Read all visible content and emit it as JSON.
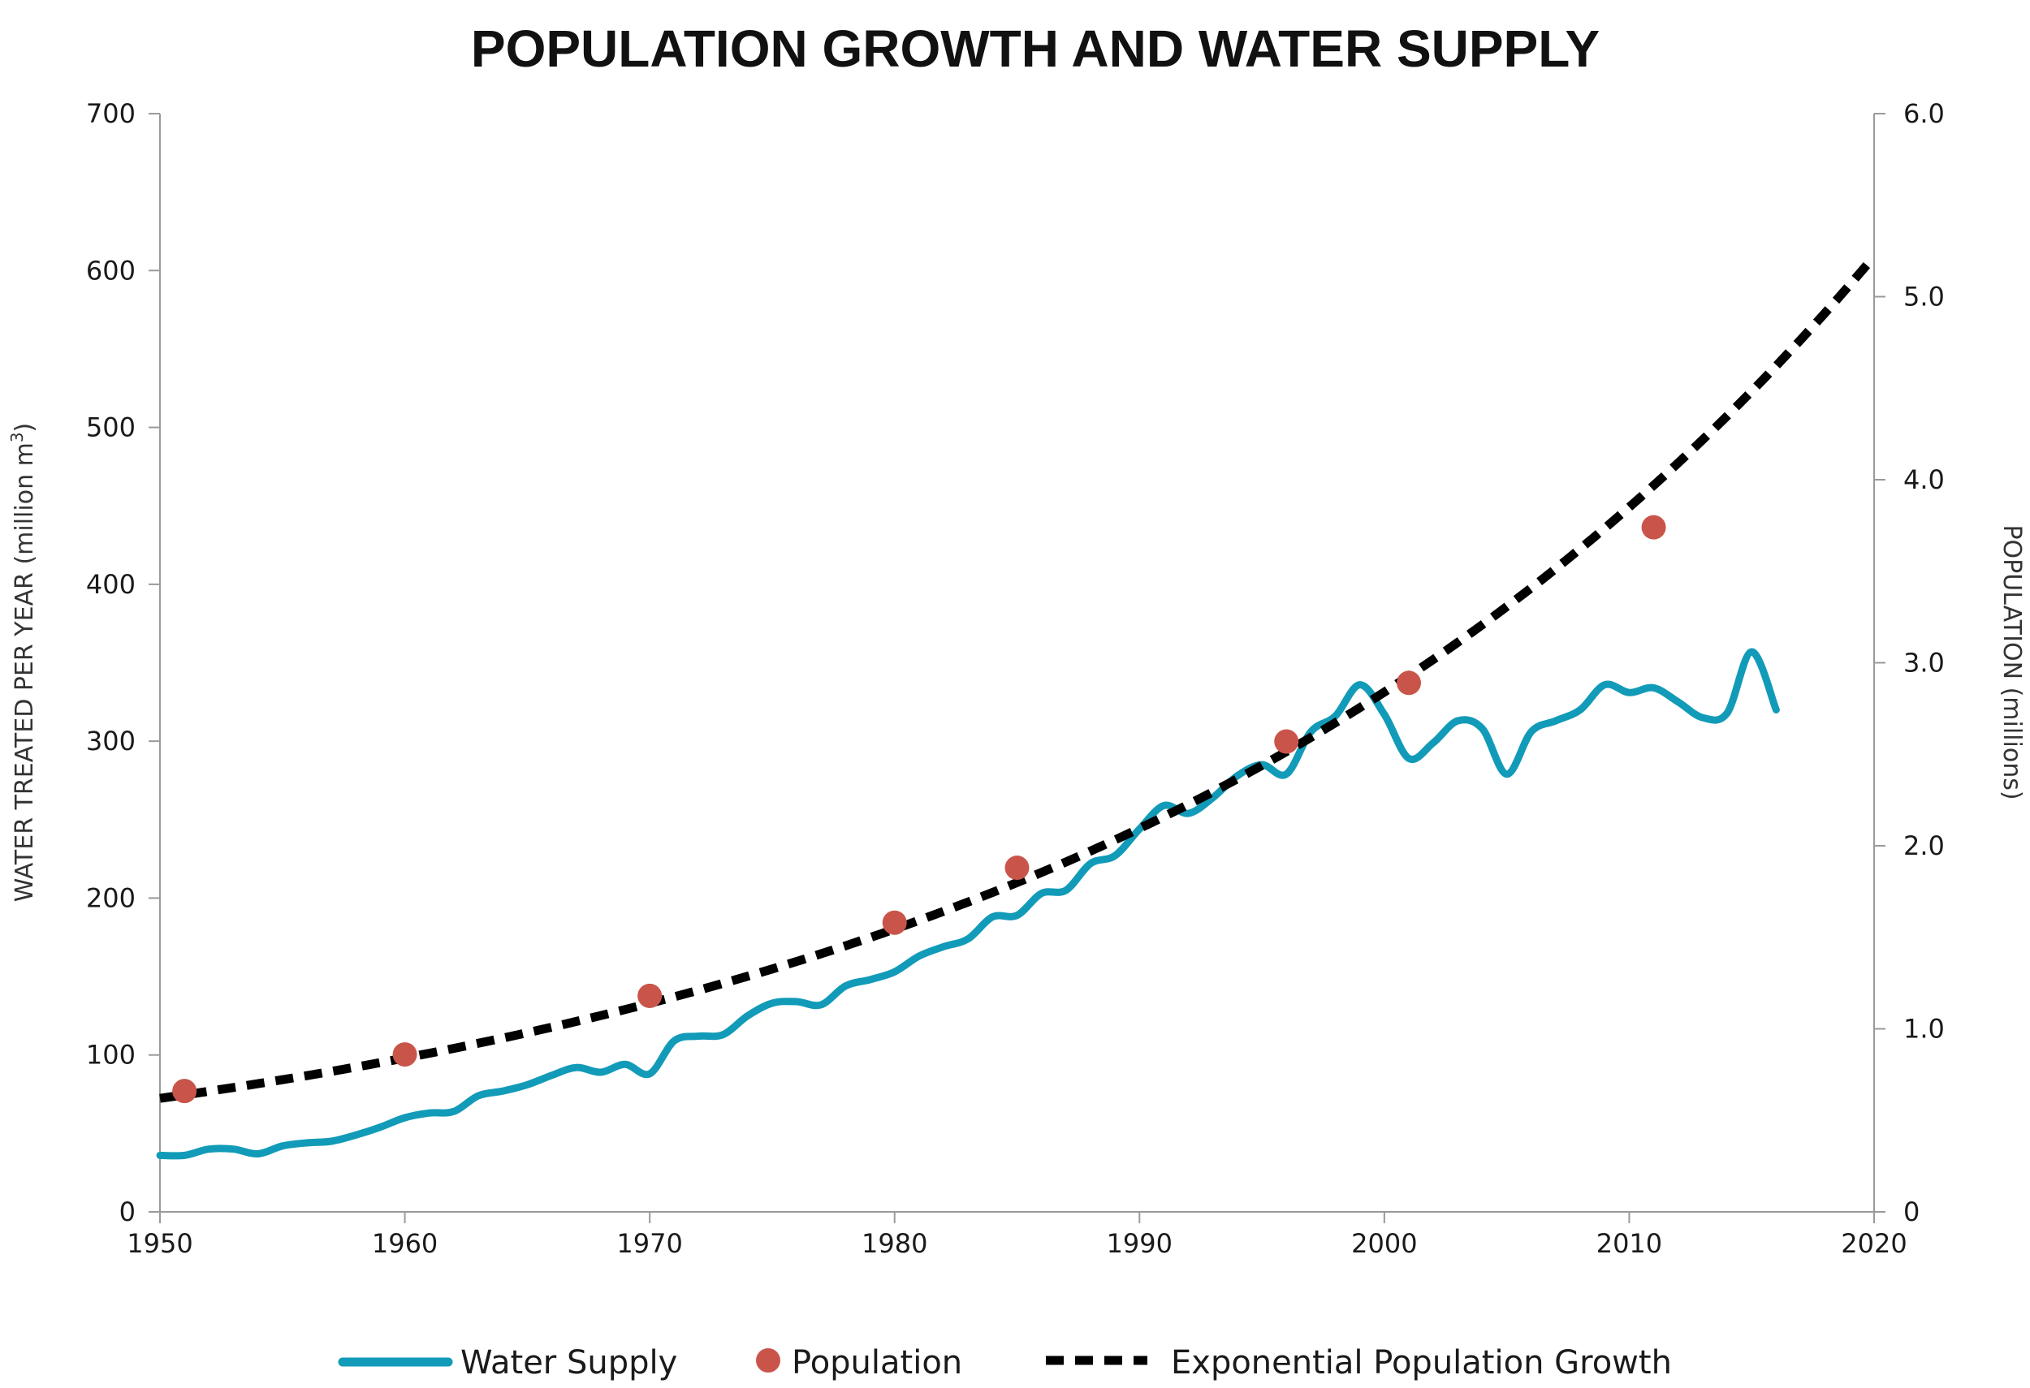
{
  "chart_data": {
    "type": "line",
    "title": "POPULATION GROWTH AND WATER SUPPLY",
    "xlabel": "",
    "ylabel_left_main": "WATER TREATED PER YEAR (million m",
    "ylabel_left_sup": "3",
    "ylabel_left_end": ")",
    "ylabel_right": "POPULATION (millions)",
    "xlim": [
      1950,
      2020
    ],
    "ylim_left": [
      0,
      700
    ],
    "ylim_right": [
      0,
      6
    ],
    "x_ticks": [
      1950,
      1960,
      1970,
      1980,
      1990,
      2000,
      2010,
      2020
    ],
    "x_tick_labels": [
      "1950",
      "1960",
      "1970",
      "1980",
      "1990",
      "2000",
      "2010",
      "2020"
    ],
    "y_left_ticks": [
      0,
      100,
      200,
      300,
      400,
      500,
      600,
      700
    ],
    "y_left_tick_labels": [
      "0",
      "100",
      "200",
      "300",
      "400",
      "500",
      "600",
      "700"
    ],
    "y_right_ticks": [
      0,
      1,
      2,
      3,
      4,
      5,
      6
    ],
    "y_right_tick_labels": [
      "0",
      "1.0",
      "2.0",
      "3.0",
      "4.0",
      "5.0",
      "6.0"
    ],
    "grid": false,
    "legend_position": "bottom",
    "series": [
      {
        "name": "Water Supply",
        "axis": "left",
        "style": "line",
        "color": "#129bb8",
        "x": [
          1950,
          1951,
          1952,
          1953,
          1954,
          1955,
          1956,
          1957,
          1958,
          1959,
          1960,
          1961,
          1962,
          1963,
          1964,
          1965,
          1966,
          1967,
          1968,
          1969,
          1970,
          1971,
          1972,
          1973,
          1974,
          1975,
          1976,
          1977,
          1978,
          1979,
          1980,
          1981,
          1982,
          1983,
          1984,
          1985,
          1986,
          1987,
          1988,
          1989,
          1990,
          1991,
          1992,
          1993,
          1994,
          1995,
          1996,
          1997,
          1998,
          1999,
          2000,
          2001,
          2002,
          2003,
          2004,
          2005,
          2006,
          2007,
          2008,
          2009,
          2010,
          2011,
          2012,
          2013,
          2014,
          2015,
          2016
        ],
        "values": [
          36,
          36,
          40,
          40,
          37,
          42,
          44,
          45,
          49,
          54,
          60,
          63,
          64,
          74,
          77,
          81,
          87,
          92,
          89,
          94,
          88,
          109,
          112,
          113,
          125,
          133,
          134,
          132,
          144,
          148,
          153,
          163,
          169,
          174,
          188,
          189,
          203,
          205,
          222,
          227,
          244,
          259,
          254,
          264,
          278,
          285,
          279,
          306,
          316,
          336,
          317,
          289,
          299,
          313,
          308,
          279,
          306,
          313,
          320,
          336,
          331,
          334,
          325,
          315,
          318,
          357,
          320
        ]
      },
      {
        "name": "Population",
        "axis": "right",
        "style": "points",
        "color": "#c9554a",
        "x": [
          1951,
          1960,
          1970,
          1980,
          1985,
          1996,
          2001,
          2011
        ],
        "values": [
          0.66,
          0.86,
          1.18,
          1.58,
          1.88,
          2.57,
          2.89,
          3.74
        ]
      },
      {
        "name": "Exponential Population Growth",
        "axis": "right",
        "style": "dashed",
        "color": "#000000",
        "x": [
          1950,
          2020
        ],
        "values": [
          0.62,
          5.22
        ]
      }
    ]
  }
}
